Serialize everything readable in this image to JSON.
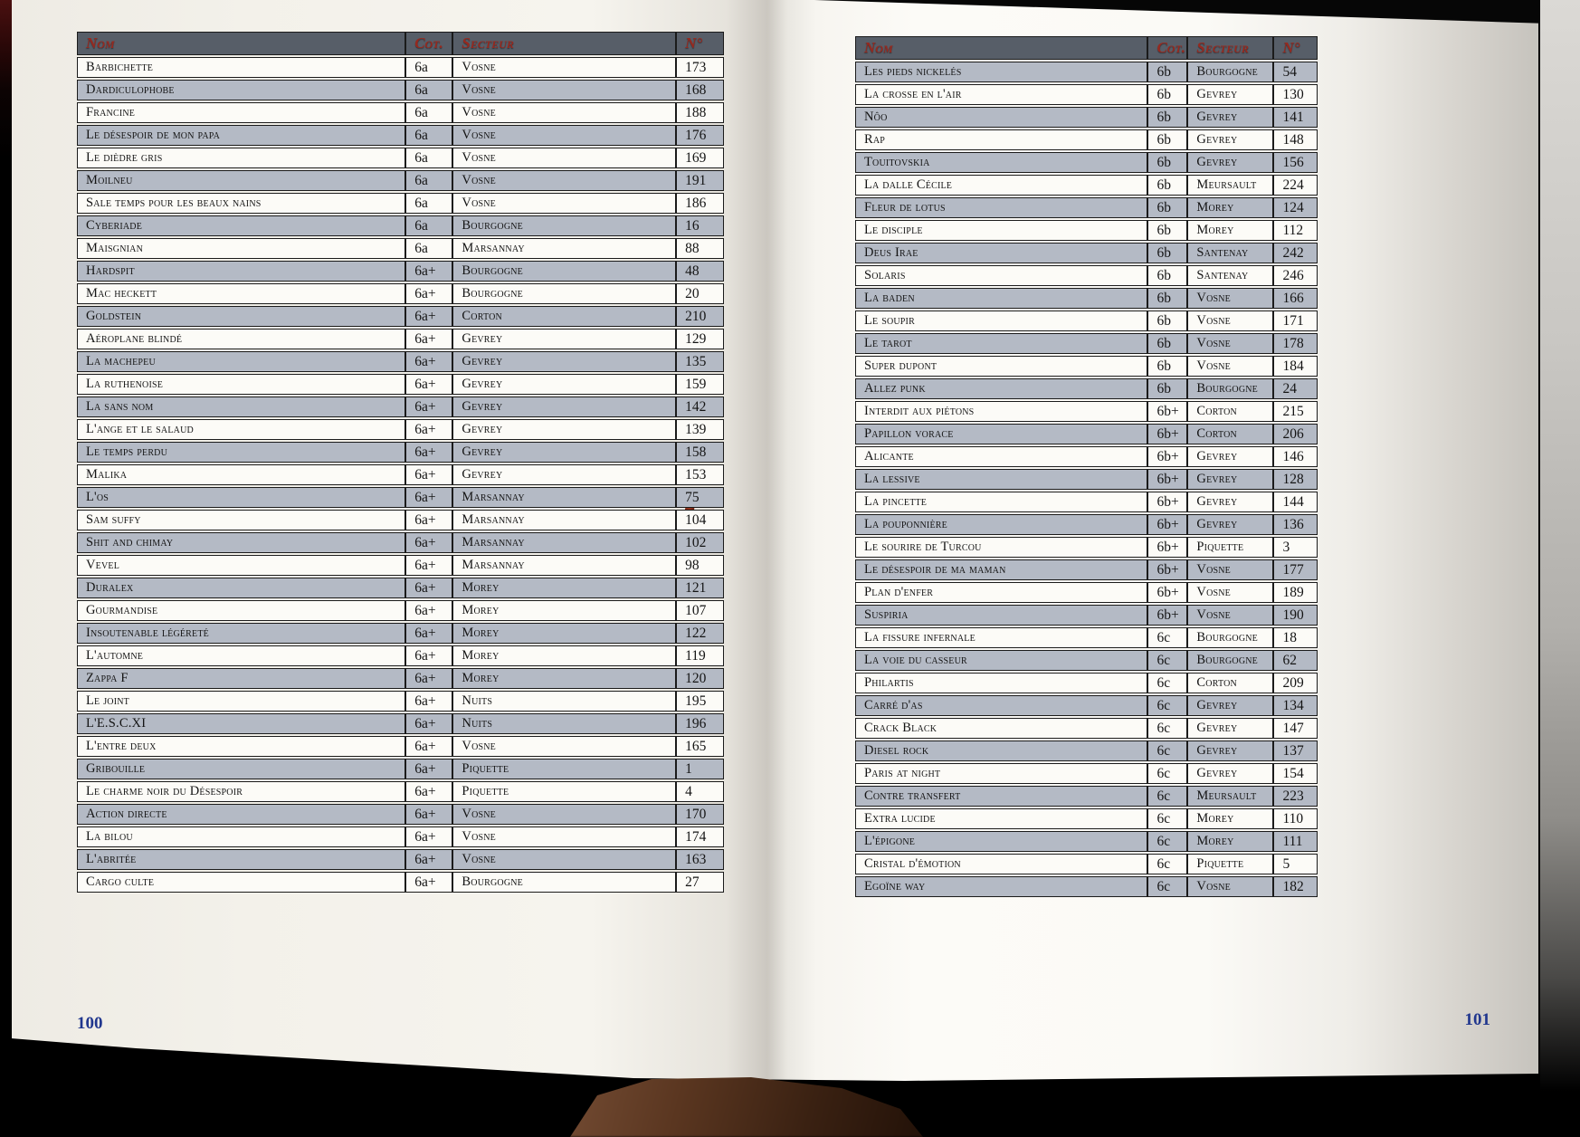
{
  "colors": {
    "header_bg": "#575e68",
    "header_text": "#96291f",
    "row_shaded": "#b4bac5",
    "row_white": "#fcfbf7",
    "table_border": "#1b1b1b",
    "page_number": "#21378e"
  },
  "left_page": {
    "page_number": "100",
    "columns": [
      "Nom",
      "Cot.",
      "Secteur",
      "N°"
    ],
    "rows": [
      [
        "Barbichette",
        "6a",
        "Vosne",
        "173"
      ],
      [
        "Dardiculophobe",
        "6a",
        "Vosne",
        "168"
      ],
      [
        "Francine",
        "6a",
        "Vosne",
        "188"
      ],
      [
        "Le désespoir de mon papa",
        "6a",
        "Vosne",
        "176"
      ],
      [
        "Le dièdre gris",
        "6a",
        "Vosne",
        "169"
      ],
      [
        "Moilneu",
        "6a",
        "Vosne",
        "191"
      ],
      [
        "Sale temps pour les beaux nains",
        "6a",
        "Vosne",
        "186"
      ],
      [
        "Cyberiade",
        "6a",
        "Bourgogne",
        "16"
      ],
      [
        "Maisgnian",
        "6a",
        "Marsannay",
        "88"
      ],
      [
        "Hardspit",
        "6a+",
        "Bourgogne",
        "48"
      ],
      [
        "Mac heckett",
        "6a+",
        "Bourgogne",
        "20"
      ],
      [
        "Goldstein",
        "6a+",
        "Corton",
        "210"
      ],
      [
        "Aéroplane blindé",
        "6a+",
        "Gevrey",
        "129"
      ],
      [
        "La machepeu",
        "6a+",
        "Gevrey",
        "135"
      ],
      [
        "La ruthenoise",
        "6a+",
        "Gevrey",
        "159"
      ],
      [
        "La sans nom",
        "6a+",
        "Gevrey",
        "142"
      ],
      [
        "L'ange et le salaud",
        "6a+",
        "Gevrey",
        "139"
      ],
      [
        "Le temps perdu",
        "6a+",
        "Gevrey",
        "158"
      ],
      [
        "Malika",
        "6a+",
        "Gevrey",
        "153"
      ],
      [
        "L'os",
        "6a+",
        "Marsannay",
        "75"
      ],
      [
        "Sam suffy",
        "6a+",
        "Marsannay",
        "104"
      ],
      [
        "Shit and chimay",
        "6a+",
        "Marsannay",
        "102"
      ],
      [
        "Vevel",
        "6a+",
        "Marsannay",
        "98"
      ],
      [
        "Duralex",
        "6a+",
        "Morey",
        "121"
      ],
      [
        "Gourmandise",
        "6a+",
        "Morey",
        "107"
      ],
      [
        "Insoutenable légéreté",
        "6a+",
        "Morey",
        "122"
      ],
      [
        "L'automne",
        "6a+",
        "Morey",
        "119"
      ],
      [
        "Zappa F",
        "6a+",
        "Morey",
        "120"
      ],
      [
        "Le joint",
        "6a+",
        "Nuits",
        "195"
      ],
      [
        "L'E.S.C.XI",
        "6a+",
        "Nuits",
        "196"
      ],
      [
        "L'entre deux",
        "6a+",
        "Vosne",
        "165"
      ],
      [
        "Gribouille",
        "6a+",
        "Piquette",
        "1"
      ],
      [
        "Le charme noir du Désespoir",
        "6a+",
        "Piquette",
        "4"
      ],
      [
        "Action directe",
        "6a+",
        "Vosne",
        "170"
      ],
      [
        "La bilou",
        "6a+",
        "Vosne",
        "174"
      ],
      [
        "L'abritée",
        "6a+",
        "Vosne",
        "163"
      ],
      [
        "Cargo culte",
        "6a+",
        "Bourgogne",
        "27"
      ]
    ]
  },
  "right_page": {
    "page_number": "101",
    "columns": [
      "Nom",
      "Cot.",
      "Secteur",
      "N°"
    ],
    "rows": [
      [
        "Les pieds nickelés",
        "6b",
        "Bourgogne",
        "54"
      ],
      [
        "La crosse en l'air",
        "6b",
        "Gevrey",
        "130"
      ],
      [
        "Nôo",
        "6b",
        "Gevrey",
        "141"
      ],
      [
        "Rap",
        "6b",
        "Gevrey",
        "148"
      ],
      [
        "Touitovskia",
        "6b",
        "Gevrey",
        "156"
      ],
      [
        "La dalle Cécile",
        "6b",
        "Meursault",
        "224"
      ],
      [
        "Fleur de lotus",
        "6b",
        "Morey",
        "124"
      ],
      [
        "Le disciple",
        "6b",
        "Morey",
        "112"
      ],
      [
        "Deus Irae",
        "6b",
        "Santenay",
        "242"
      ],
      [
        "Solaris",
        "6b",
        "Santenay",
        "246"
      ],
      [
        "La baden",
        "6b",
        "Vosne",
        "166"
      ],
      [
        "Le soupir",
        "6b",
        "Vosne",
        "171"
      ],
      [
        "Le tarot",
        "6b",
        "Vosne",
        "178"
      ],
      [
        "Super dupont",
        "6b",
        "Vosne",
        "184"
      ],
      [
        "Allez punk",
        "6b",
        "Bourgogne",
        "24"
      ],
      [
        "Interdit aux piétons",
        "6b+",
        "Corton",
        "215"
      ],
      [
        "Papillon vorace",
        "6b+",
        "Corton",
        "206"
      ],
      [
        "Alicante",
        "6b+",
        "Gevrey",
        "146"
      ],
      [
        "La lessive",
        "6b+",
        "Gevrey",
        "128"
      ],
      [
        "La pincette",
        "6b+",
        "Gevrey",
        "144"
      ],
      [
        "La pouponnière",
        "6b+",
        "Gevrey",
        "136"
      ],
      [
        "Le sourire de Turcou",
        "6b+",
        "Piquette",
        "3"
      ],
      [
        "Le désespoir de ma maman",
        "6b+",
        "Vosne",
        "177"
      ],
      [
        "Plan d'enfer",
        "6b+",
        "Vosne",
        "189"
      ],
      [
        "Suspiria",
        "6b+",
        "Vosne",
        "190"
      ],
      [
        "La fissure infernale",
        "6c",
        "Bourgogne",
        "18"
      ],
      [
        "La voie du casseur",
        "6c",
        "Bourgogne",
        "62"
      ],
      [
        "Philartis",
        "6c",
        "Corton",
        "209"
      ],
      [
        "Carré d'as",
        "6c",
        "Gevrey",
        "134"
      ],
      [
        "Crack Black",
        "6c",
        "Gevrey",
        "147"
      ],
      [
        "Diesel rock",
        "6c",
        "Gevrey",
        "137"
      ],
      [
        "Paris at night",
        "6c",
        "Gevrey",
        "154"
      ],
      [
        "Contre transfert",
        "6c",
        "Meursault",
        "223"
      ],
      [
        "Extra lucide",
        "6c",
        "Morey",
        "110"
      ],
      [
        "L'épigone",
        "6c",
        "Morey",
        "111"
      ],
      [
        "Cristal d'émotion",
        "6c",
        "Piquette",
        "5"
      ],
      [
        "Egoïne way",
        "6c",
        "Vosne",
        "182"
      ]
    ]
  }
}
